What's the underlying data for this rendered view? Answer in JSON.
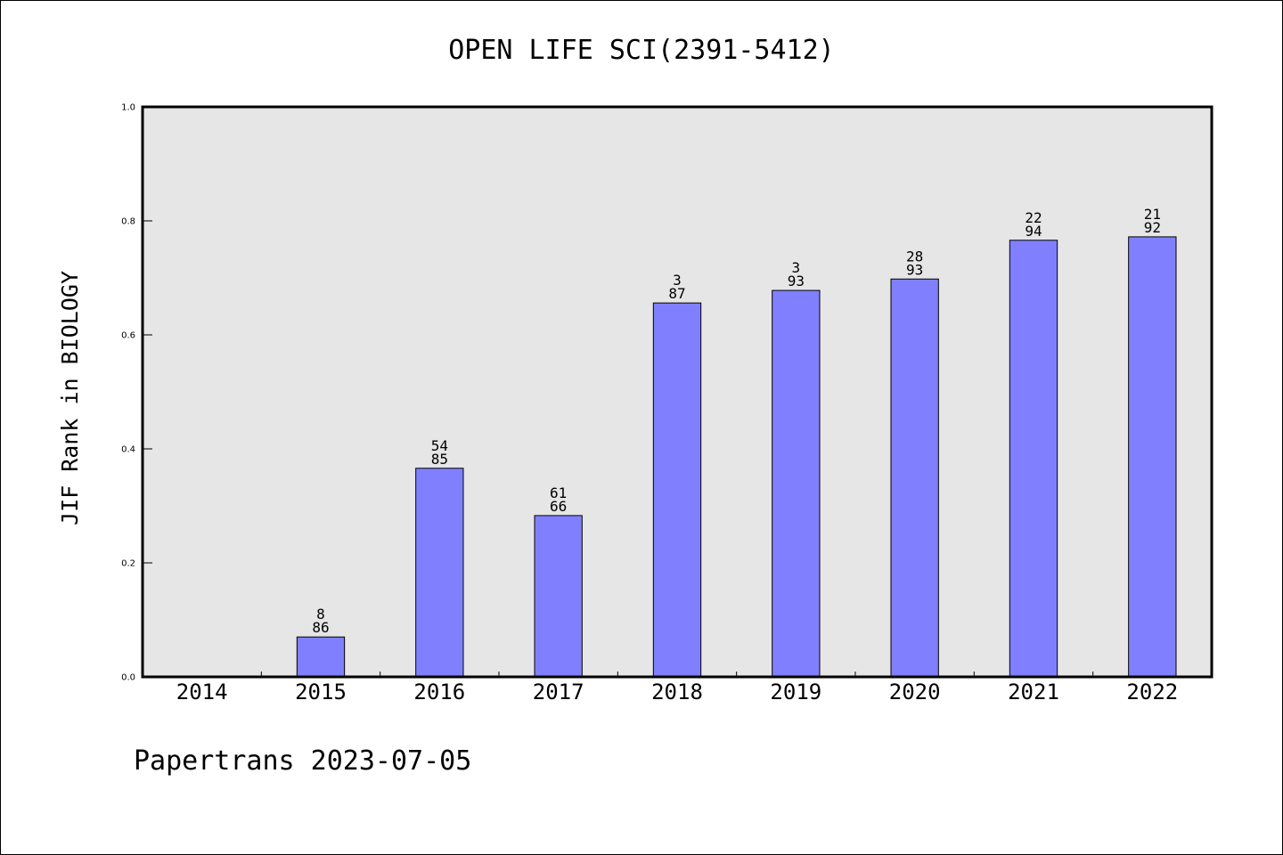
{
  "chart_data": {
    "type": "bar",
    "title": "OPEN LIFE SCI(2391-5412)",
    "ylabel": "JIF Rank in BIOLOGY",
    "categories": [
      "2014",
      "2015",
      "2016",
      "2017",
      "2018",
      "2019",
      "2020",
      "2021",
      "2022"
    ],
    "values": [
      null,
      0.07,
      0.366,
      0.283,
      0.656,
      0.678,
      0.698,
      0.766,
      0.772
    ],
    "data_labels": [
      null,
      [
        "8",
        "86"
      ],
      [
        "54",
        "85"
      ],
      [
        "61",
        "66"
      ],
      [
        "3",
        "87"
      ],
      [
        "3",
        "93"
      ],
      [
        "28",
        "93"
      ],
      [
        "22",
        "94"
      ],
      [
        "21",
        "92"
      ]
    ],
    "ylim": [
      0,
      1
    ],
    "yticks": [
      0,
      0.2,
      0.4,
      0.6,
      0.8,
      1.0
    ],
    "ytick_labels": [
      "0.0",
      "0.2",
      "0.4",
      "0.6",
      "0.8",
      "1.0"
    ],
    "grid": false,
    "bar_color": "#8080ff",
    "plot_background": "#e6e6e6"
  },
  "footer": "Papertrans 2023-07-05"
}
